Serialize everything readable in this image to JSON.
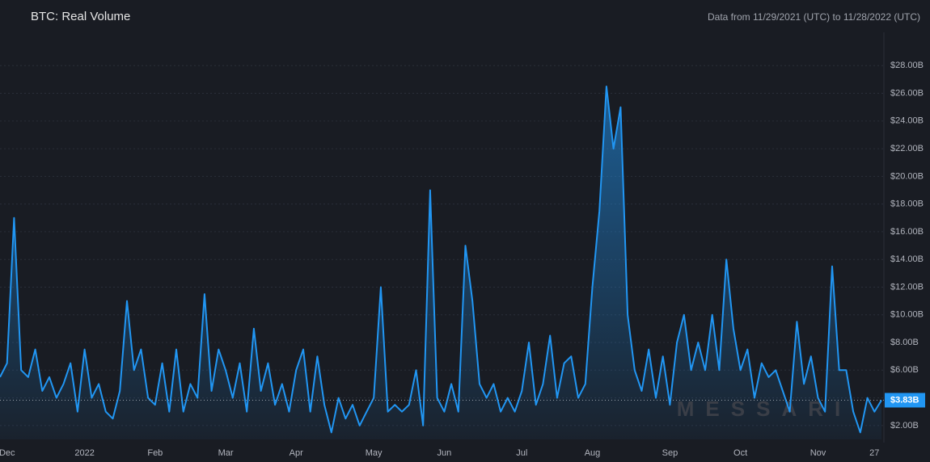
{
  "chart_data": {
    "type": "area",
    "title": "BTC: Real Volume",
    "subtitle": "Data from 11/29/2021 (UTC) to 11/28/2022 (UTC)",
    "watermark": "MESSARI",
    "color": "#2196f3",
    "categories": [
      null,
      "Dec",
      null,
      null,
      null,
      null,
      null,
      null,
      null,
      null,
      null,
      null,
      "2022",
      null,
      null,
      null,
      null,
      null,
      null,
      null,
      null,
      null,
      "Feb",
      null,
      null,
      null,
      null,
      null,
      null,
      null,
      null,
      null,
      "Mar",
      null,
      null,
      null,
      null,
      null,
      null,
      null,
      null,
      null,
      "Apr",
      null,
      null,
      null,
      null,
      null,
      null,
      null,
      null,
      null,
      null,
      "May",
      null,
      null,
      null,
      null,
      null,
      null,
      null,
      null,
      null,
      "Jun",
      null,
      null,
      null,
      null,
      null,
      null,
      null,
      null,
      null,
      null,
      "Jul",
      null,
      null,
      null,
      null,
      null,
      null,
      null,
      null,
      null,
      "Aug",
      null,
      null,
      null,
      null,
      null,
      null,
      null,
      null,
      null,
      null,
      "Sep",
      null,
      null,
      null,
      null,
      null,
      null,
      null,
      null,
      null,
      "Oct",
      null,
      null,
      null,
      null,
      null,
      null,
      null,
      null,
      null,
      null,
      "Nov",
      null,
      null,
      null,
      null,
      null,
      null,
      null,
      "27",
      null
    ],
    "values": [
      5.5,
      6.5,
      17,
      6,
      5.5,
      7.5,
      4.5,
      5.5,
      4,
      5,
      6.5,
      3,
      7.5,
      4,
      5,
      3,
      2.5,
      4.5,
      11,
      6,
      7.5,
      4,
      3.5,
      6.5,
      3,
      7.5,
      3,
      5,
      4,
      11.5,
      4.5,
      7.5,
      6,
      4,
      6.5,
      3,
      9,
      4.5,
      6.5,
      3.5,
      5,
      3,
      6,
      7.5,
      3,
      7,
      3.5,
      1.5,
      4,
      2.5,
      3.5,
      2,
      3,
      4,
      12,
      3,
      3.5,
      3,
      3.5,
      6,
      2,
      19,
      4,
      3,
      5,
      3,
      15,
      11,
      5,
      4,
      5,
      3,
      4,
      3,
      4.5,
      8,
      3.5,
      5,
      8.5,
      4,
      6.5,
      7,
      4,
      5,
      12,
      17.5,
      26.5,
      22,
      25,
      10,
      6,
      4.5,
      7.5,
      4,
      7,
      3.5,
      8,
      10,
      6,
      8,
      6,
      10,
      6,
      14,
      9,
      6,
      7.5,
      4,
      6.5,
      5.5,
      6,
      4.5,
      3,
      9.5,
      5,
      7,
      4,
      3,
      13.5,
      6,
      6,
      3,
      1.5,
      4,
      3,
      3.83
    ],
    "current_value": {
      "value": 3.83,
      "label": "$3.83B"
    },
    "ylim": [
      1,
      30
    ],
    "yticks": [
      {
        "value": 2,
        "label": "$2.00B"
      },
      {
        "value": 4,
        "label": "$4.00B"
      },
      {
        "value": 6,
        "label": "$6.00B"
      },
      {
        "value": 8,
        "label": "$8.00B"
      },
      {
        "value": 10,
        "label": "$10.00B"
      },
      {
        "value": 12,
        "label": "$12.00B"
      },
      {
        "value": 14,
        "label": "$14.00B"
      },
      {
        "value": 16,
        "label": "$16.00B"
      },
      {
        "value": 18,
        "label": "$18.00B"
      },
      {
        "value": 20,
        "label": "$20.00B"
      },
      {
        "value": 22,
        "label": "$22.00B"
      },
      {
        "value": 24,
        "label": "$24.00B"
      },
      {
        "value": 26,
        "label": "$26.00B"
      },
      {
        "value": 28,
        "label": "$28.00B"
      }
    ],
    "grid": true
  }
}
